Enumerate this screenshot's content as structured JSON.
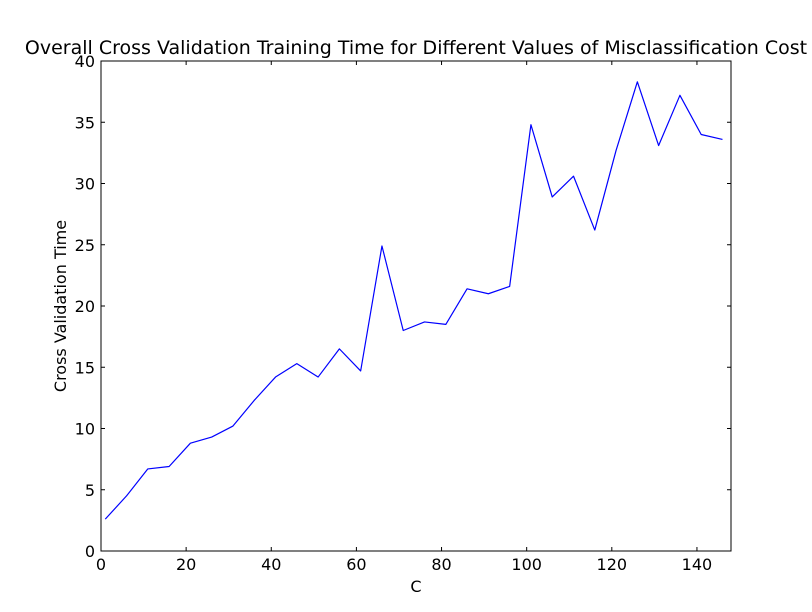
{
  "chart_data": {
    "type": "line",
    "title": "Overall Cross Validation Training Time for Different Values of Misclassification Cost",
    "xlabel": "C",
    "ylabel": "Cross Validation Time",
    "xlim": [
      0,
      148
    ],
    "ylim": [
      0,
      40
    ],
    "xticks": [
      0,
      20,
      40,
      60,
      80,
      100,
      120,
      140
    ],
    "yticks": [
      0,
      5,
      10,
      15,
      20,
      25,
      30,
      35,
      40
    ],
    "grid": false,
    "series": [
      {
        "color": "#0000ff",
        "x": [
          1,
          6,
          11,
          16,
          21,
          26,
          31,
          36,
          41,
          46,
          51,
          56,
          61,
          66,
          71,
          76,
          81,
          86,
          91,
          96,
          101,
          106,
          111,
          116,
          121,
          126,
          131,
          136,
          141,
          146
        ],
        "y": [
          2.6,
          4.5,
          6.7,
          6.9,
          8.8,
          9.3,
          10.2,
          12.3,
          14.2,
          15.3,
          14.2,
          16.5,
          14.7,
          24.9,
          18.0,
          18.7,
          18.5,
          21.4,
          21.0,
          21.6,
          34.8,
          28.9,
          30.6,
          26.2,
          32.7,
          38.3,
          33.1,
          37.2,
          34.0,
          33.6
        ]
      }
    ]
  }
}
